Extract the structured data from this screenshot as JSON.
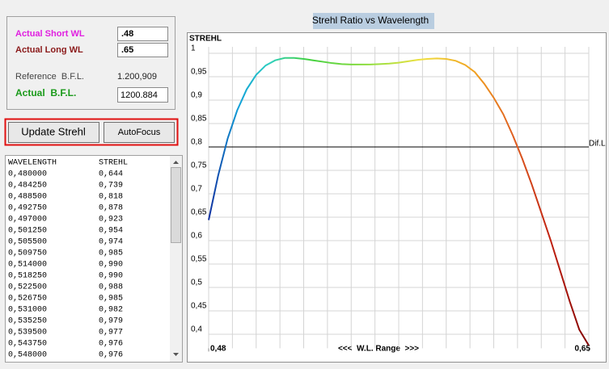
{
  "form": {
    "short_wl": {
      "label": "Actual Short WL",
      "value": ".48"
    },
    "long_wl": {
      "label": "Actual Long WL",
      "value": ".65"
    },
    "reference_bfl": {
      "label": "Reference  B.F.L.",
      "value": "1.200,909"
    },
    "actual_bfl": {
      "label": "Actual  B.F.L.",
      "value": "1200.884"
    }
  },
  "buttons": [
    "Update Strehl",
    "AutoFocus"
  ],
  "table": {
    "columns": [
      "WAVELENGTH",
      "STREHL"
    ],
    "rows": [
      [
        "0,480000",
        "0,644"
      ],
      [
        "0,484250",
        "0,739"
      ],
      [
        "0,488500",
        "0,818"
      ],
      [
        "0,492750",
        "0,878"
      ],
      [
        "0,497000",
        "0,923"
      ],
      [
        "0,501250",
        "0,954"
      ],
      [
        "0,505500",
        "0,974"
      ],
      [
        "0,509750",
        "0,985"
      ],
      [
        "0,514000",
        "0,990"
      ],
      [
        "0,518250",
        "0,990"
      ],
      [
        "0,522500",
        "0,988"
      ],
      [
        "0,526750",
        "0,985"
      ],
      [
        "0,531000",
        "0,982"
      ],
      [
        "0,535250",
        "0,979"
      ],
      [
        "0,539500",
        "0,977"
      ],
      [
        "0,543750",
        "0,976"
      ],
      [
        "0,548000",
        "0,976"
      ]
    ]
  },
  "chart_data": {
    "type": "line",
    "title": "Strehl Ratio vs Wavelength",
    "y_axis_label": "STREHL",
    "x_axis_label": "<<<  W.L. Range  >>>",
    "x": [
      0.48,
      0.48425,
      0.4885,
      0.49275,
      0.497,
      0.50125,
      0.5055,
      0.50975,
      0.514,
      0.51825,
      0.5225,
      0.52675,
      0.531,
      0.53525,
      0.5395,
      0.54375,
      0.548,
      0.55225,
      0.5565,
      0.56075,
      0.565,
      0.56925,
      0.5735,
      0.57775,
      0.582,
      0.58625,
      0.5905,
      0.59475,
      0.599,
      0.60325,
      0.6075,
      0.61175,
      0.616,
      0.62025,
      0.6245,
      0.62875,
      0.633,
      0.63725,
      0.6415,
      0.64575,
      0.65
    ],
    "values": [
      0.644,
      0.739,
      0.818,
      0.878,
      0.923,
      0.954,
      0.974,
      0.985,
      0.99,
      0.99,
      0.988,
      0.985,
      0.982,
      0.979,
      0.977,
      0.976,
      0.976,
      0.976,
      0.977,
      0.978,
      0.98,
      0.983,
      0.986,
      0.988,
      0.989,
      0.988,
      0.984,
      0.975,
      0.96,
      0.935,
      0.905,
      0.87,
      0.825,
      0.775,
      0.72,
      0.66,
      0.6,
      0.535,
      0.47,
      0.41,
      0.376
    ],
    "xlim": [
      0.48,
      0.65
    ],
    "xticks": [
      {
        "value": 0.48,
        "label": "0,48"
      },
      {
        "value": 0.65,
        "label": "0,65"
      }
    ],
    "ylim": [
      0.37,
      1
    ],
    "yticks": [
      1,
      {
        "value": 0.95,
        "label": "0,95"
      },
      {
        "value": 0.9,
        "label": "0,9"
      },
      {
        "value": 0.85,
        "label": "0,85"
      },
      {
        "value": 0.8,
        "label": "0,8"
      },
      {
        "value": 0.75,
        "label": "0,75"
      },
      {
        "value": 0.7,
        "label": "0,7"
      },
      {
        "value": 0.65,
        "label": "0,65"
      },
      {
        "value": 0.6,
        "label": "0,6"
      },
      {
        "value": 0.55,
        "label": "0,55"
      },
      {
        "value": 0.5,
        "label": "0,5"
      },
      {
        "value": 0.45,
        "label": "0,45"
      },
      {
        "value": 0.4,
        "label": "0,4"
      }
    ],
    "reference_line": {
      "value": 0.8,
      "label": "Dif.L"
    },
    "grid": true
  }
}
